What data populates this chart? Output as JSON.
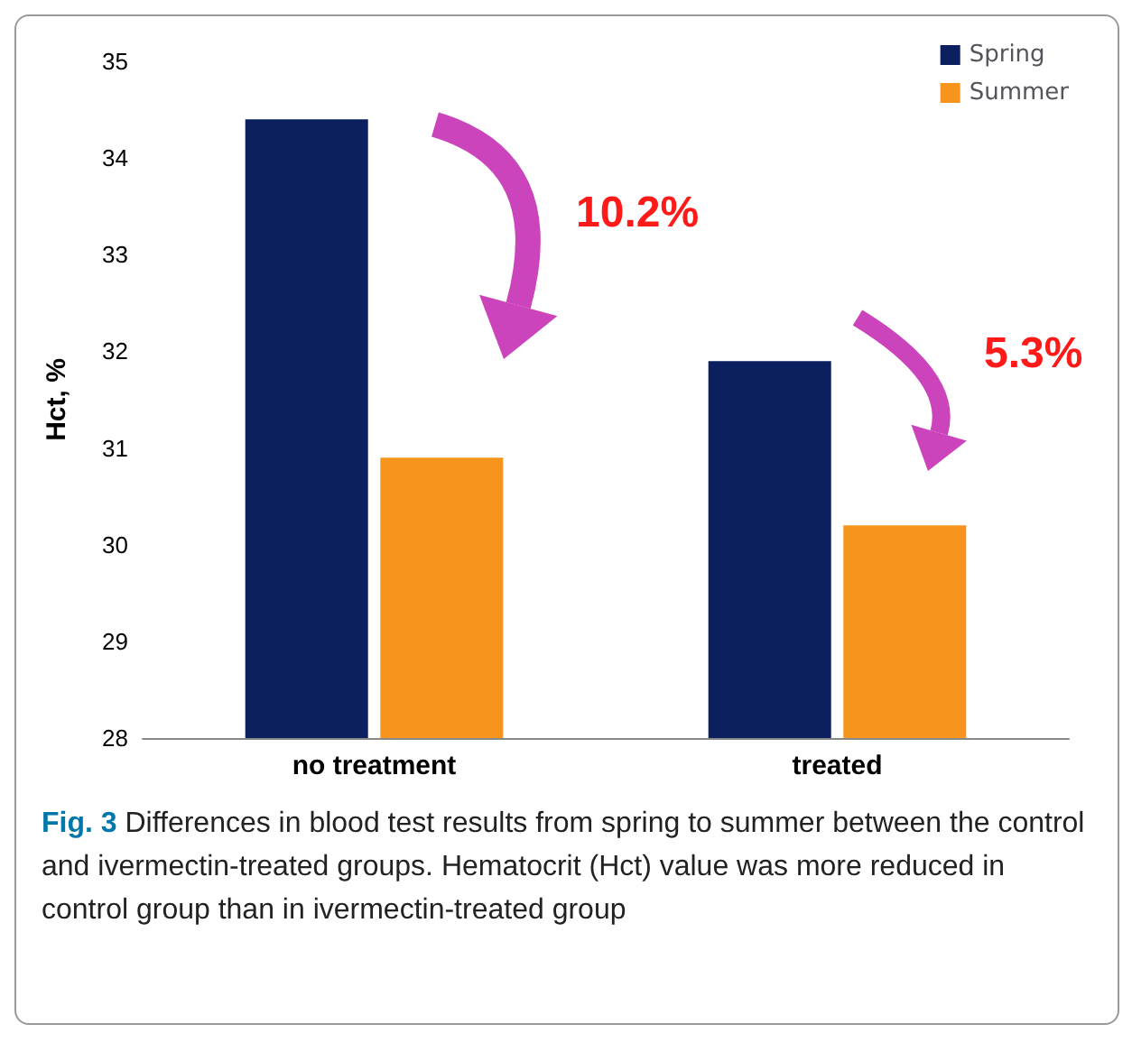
{
  "chart_data": {
    "type": "bar",
    "ylabel": "Hct, %",
    "categories": [
      "no treatment",
      "treated"
    ],
    "series": [
      {
        "name": "Spring",
        "color": "#0c1f5e",
        "values": [
          34.4,
          31.9
        ]
      },
      {
        "name": "Summer",
        "color": "#f7941d",
        "values": [
          30.9,
          30.2
        ]
      }
    ],
    "ylim": [
      28,
      35
    ],
    "yticks": [
      28,
      29,
      30,
      31,
      32,
      33,
      34,
      35
    ],
    "grid": false,
    "legend": "top right",
    "annotations": [
      "10.2%",
      "5.3%",
      "Fig. 3 Differences in blood test results from spring to summer between the control and ivermectin-treated groups. Hematocrit (Hct) value was more reduced in control group than in ivermectin-treated group"
    ]
  }
}
